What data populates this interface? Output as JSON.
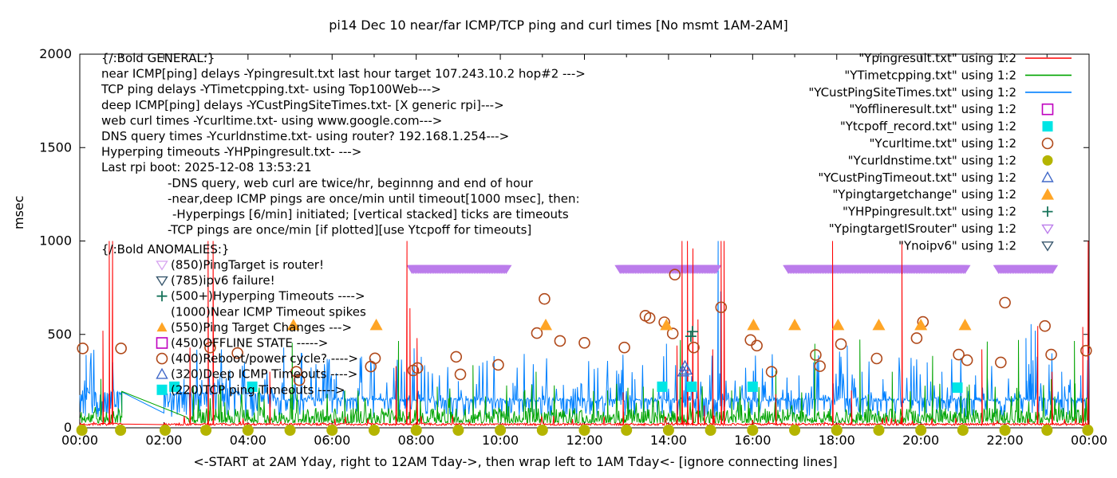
{
  "chart_data": {
    "type": "line+scatter",
    "title": "pi14 Dec 10  near/far ICMP/TCP ping and curl times [No msmt 1AM-2AM]",
    "xlabel": "<-START at 2AM Yday, right to 12AM Tday->, then wrap left to 1AM Tday<- [ignore connecting lines]",
    "ylabel": "msec",
    "ylim": [
      0,
      2000
    ],
    "xlim_hours": [
      0,
      24
    ],
    "grid": false,
    "legend_position": "inside top-right",
    "background": "#ffffff",
    "border_color": "#000000",
    "y_ticks": [
      0,
      500,
      1000,
      1500,
      2000
    ],
    "x_ticks": [
      "00:00",
      "02:00",
      "04:00",
      "06:00",
      "08:00",
      "10:00",
      "12:00",
      "14:00",
      "16:00",
      "18:00",
      "20:00",
      "22:00",
      "00:00"
    ],
    "series": [
      {
        "name": "\"Ypingresult.txt\" using 1:2",
        "color": "#ff0000",
        "kind": "line",
        "gen": "red",
        "seed": 7,
        "baseline": 18,
        "noise": 10,
        "gap": [
          1.0,
          2.0
        ],
        "gap_level": 20,
        "spikes": [
          [
            0.55,
            520
          ],
          [
            0.7,
            1000
          ],
          [
            0.78,
            1000
          ],
          [
            2.62,
            430
          ],
          [
            3.05,
            1000
          ],
          [
            3.17,
            1000
          ],
          [
            4.52,
            300
          ],
          [
            7.52,
            330
          ],
          [
            7.78,
            1000
          ],
          [
            7.85,
            640
          ],
          [
            8.02,
            480
          ],
          [
            12.92,
            190
          ],
          [
            14.2,
            440
          ],
          [
            14.32,
            1000
          ],
          [
            14.45,
            1000
          ],
          [
            14.58,
            960
          ],
          [
            14.7,
            580
          ],
          [
            14.85,
            120
          ],
          [
            15.05,
            420
          ],
          [
            15.25,
            1000
          ],
          [
            15.32,
            1000
          ],
          [
            16.55,
            180
          ],
          [
            17.9,
            1000
          ],
          [
            18.35,
            200
          ],
          [
            19.55,
            1000
          ],
          [
            21.45,
            420
          ],
          [
            22.78,
            545
          ],
          [
            23.12,
            300
          ],
          [
            23.85,
            540
          ],
          [
            23.98,
            1000
          ]
        ]
      },
      {
        "name": "\"YTimetcpping.txt\" using 1:2",
        "color": "#00a400",
        "kind": "line",
        "gen": "green",
        "seed": 11,
        "baseline": 45,
        "noise": 70,
        "gap": [
          1.0,
          2.55
        ],
        "gap_join": [
          [
            1.0,
            195
          ],
          [
            2.55,
            48
          ]
        ],
        "spikes": [
          [
            0.5,
            262
          ],
          [
            2.7,
            220
          ],
          [
            3.3,
            180
          ],
          [
            5.05,
            455
          ],
          [
            6.3,
            200
          ],
          [
            7.58,
            465
          ],
          [
            8.5,
            220
          ],
          [
            9.35,
            335
          ],
          [
            10.15,
            220
          ],
          [
            10.85,
            300
          ],
          [
            12.55,
            200
          ],
          [
            13.4,
            220
          ],
          [
            14.28,
            470
          ],
          [
            15.5,
            200
          ],
          [
            16.55,
            305
          ],
          [
            17.48,
            450
          ],
          [
            18.55,
            472
          ],
          [
            19.32,
            300
          ],
          [
            20.28,
            385
          ],
          [
            21.1,
            220
          ],
          [
            21.58,
            462
          ],
          [
            22.32,
            470
          ],
          [
            23.1,
            260
          ],
          [
            23.65,
            465
          ]
        ]
      },
      {
        "name": "\"YCustPingSiteTimes.txt\" using 1:2",
        "color": "#0080ff",
        "kind": "line",
        "gen": "blue",
        "seed": 23,
        "baseline": 150,
        "noise": 120,
        "gap": [
          1.0,
          2.0
        ],
        "gap_level": 192,
        "spikes": [
          [
            0.15,
            390
          ],
          [
            2.48,
            262
          ],
          [
            3.4,
            240
          ],
          [
            4.85,
            430
          ],
          [
            5.28,
            400
          ],
          [
            6.05,
            260
          ],
          [
            7.72,
            300
          ],
          [
            7.95,
            425
          ],
          [
            8.12,
            380
          ],
          [
            9.0,
            250
          ],
          [
            10.3,
            240
          ],
          [
            11.5,
            230
          ],
          [
            13.2,
            260
          ],
          [
            13.95,
            450
          ],
          [
            14.4,
            300
          ],
          [
            15.18,
            1000
          ],
          [
            15.24,
            730
          ],
          [
            16.02,
            300
          ],
          [
            17.1,
            280
          ],
          [
            17.45,
            350
          ],
          [
            18.25,
            440
          ],
          [
            18.6,
            300
          ],
          [
            19.1,
            260
          ],
          [
            20.15,
            350
          ],
          [
            20.5,
            300
          ],
          [
            21.3,
            280
          ],
          [
            22.5,
            480
          ],
          [
            22.62,
            555
          ],
          [
            22.72,
            520
          ],
          [
            23.05,
            300
          ],
          [
            23.35,
            300
          ],
          [
            23.8,
            280
          ]
        ]
      },
      {
        "name": "\"Yofflineresult.txt\" using 1:2",
        "color": "#bf00bf",
        "kind": "scatter",
        "marker": "square-open",
        "points": []
      },
      {
        "name": "\"Ytcpoff_record.txt\" using 1:2",
        "color": "#00e5e5",
        "kind": "scatter",
        "marker": "square",
        "points": [
          [
            2.25,
            220
          ],
          [
            4.1,
            220
          ],
          [
            13.85,
            220
          ],
          [
            14.55,
            220
          ],
          [
            16.0,
            220
          ],
          [
            20.87,
            215
          ]
        ]
      },
      {
        "name": "\"Ycurltime.txt\" using 1:2",
        "color": "#b0491a",
        "kind": "scatter",
        "marker": "circle-open",
        "points": [
          [
            0.07,
            425
          ],
          [
            0.98,
            425
          ],
          [
            3.1,
            430
          ],
          [
            3.75,
            400
          ],
          [
            5.15,
            300
          ],
          [
            5.22,
            255
          ],
          [
            6.92,
            328
          ],
          [
            7.02,
            372
          ],
          [
            7.93,
            307
          ],
          [
            8.03,
            320
          ],
          [
            8.95,
            380
          ],
          [
            9.05,
            286
          ],
          [
            9.95,
            337
          ],
          [
            10.87,
            507
          ],
          [
            11.05,
            690
          ],
          [
            11.42,
            465
          ],
          [
            12.0,
            455
          ],
          [
            12.95,
            430
          ],
          [
            13.45,
            600
          ],
          [
            13.55,
            588
          ],
          [
            13.9,
            565
          ],
          [
            14.1,
            505
          ],
          [
            14.15,
            820
          ],
          [
            14.6,
            430
          ],
          [
            15.25,
            645
          ],
          [
            15.95,
            470
          ],
          [
            16.1,
            440
          ],
          [
            16.45,
            300
          ],
          [
            17.5,
            390
          ],
          [
            17.6,
            330
          ],
          [
            18.1,
            448
          ],
          [
            18.95,
            371
          ],
          [
            19.9,
            480
          ],
          [
            20.05,
            567
          ],
          [
            20.9,
            392
          ],
          [
            21.1,
            362
          ],
          [
            21.9,
            350
          ],
          [
            22.0,
            670
          ],
          [
            22.95,
            545
          ],
          [
            23.1,
            392
          ],
          [
            23.93,
            413
          ]
        ]
      },
      {
        "name": "\"Ycurldnstime.txt\" using 1:2",
        "color": "#b4b400",
        "kind": "scatter",
        "marker": "circle",
        "points": [
          [
            0.05,
            0
          ],
          [
            0.97,
            0
          ],
          [
            2.03,
            0
          ],
          [
            3,
            0
          ],
          [
            4,
            0
          ],
          [
            5,
            0
          ],
          [
            6,
            0
          ],
          [
            7,
            0
          ],
          [
            8,
            0
          ],
          [
            9,
            0
          ],
          [
            10,
            0
          ],
          [
            11,
            0
          ],
          [
            12,
            0
          ],
          [
            13,
            0
          ],
          [
            14,
            0
          ],
          [
            15,
            0
          ],
          [
            16,
            0
          ],
          [
            17,
            0
          ],
          [
            18,
            0
          ],
          [
            19,
            0
          ],
          [
            20,
            0
          ],
          [
            21,
            0
          ],
          [
            22,
            0
          ],
          [
            23,
            0
          ],
          [
            23.97,
            0
          ]
        ]
      },
      {
        "name": "\"YCustPingTimeout.txt\" using 1:2",
        "color": "#4169c8",
        "kind": "scatter",
        "marker": "triangle-open",
        "points": [
          [
            14.35,
            300
          ],
          [
            14.39,
            330
          ],
          [
            14.43,
            310
          ]
        ]
      },
      {
        "name": "\"Ypingtargetchange\" using 1:2",
        "color": "#ffa526",
        "kind": "scatter",
        "marker": "triangle",
        "points": [
          [
            5.08,
            550
          ],
          [
            7.05,
            550
          ],
          [
            11.08,
            550
          ],
          [
            13.95,
            550
          ],
          [
            16.02,
            550
          ],
          [
            17.0,
            550
          ],
          [
            18.03,
            550
          ],
          [
            19.0,
            550
          ],
          [
            20.0,
            550
          ],
          [
            21.05,
            550
          ]
        ]
      },
      {
        "name": "\"YHPpingresult.txt\" using 1:2",
        "color": "#17735a",
        "kind": "scatter",
        "marker": "plus",
        "points": [
          [
            14.53,
            490
          ],
          [
            14.57,
            515
          ]
        ]
      },
      {
        "name": "\"YpingtargetISrouter\" using 1:2",
        "color": "#bb7ceb",
        "kind": "band",
        "marker": "triangle-down-open",
        "band_y": 850,
        "intervals": [
          [
            7.9,
            10.15
          ],
          [
            12.85,
            15.15
          ],
          [
            16.85,
            21.05
          ],
          [
            21.85,
            23.15
          ]
        ]
      },
      {
        "name": "\"Ynoipv6\" using 1:2",
        "color": "#39586e",
        "kind": "scatter",
        "marker": "triangle-down-open",
        "points": []
      }
    ],
    "annotations": {
      "general": [
        {
          "x": 127,
          "text": "{/:Bold GENERAL:}"
        },
        {
          "x": 127,
          "text": "near ICMP[ping] delays -Ypingresult.txt last hour target 107.243.10.2 hop#2 --->"
        },
        {
          "x": 127,
          "text": "TCP ping delays -YTimetcpping.txt- using Top100Web--->"
        },
        {
          "x": 127,
          "text": "deep ICMP[ping] delays -YCustPingSiteTimes.txt- [X generic rpi]--->"
        },
        {
          "x": 127,
          "text": "web curl times -Ycurltime.txt- using www.google.com--->"
        },
        {
          "x": 127,
          "text": "DNS query times -Ycurldnstime.txt- using router? 192.168.1.254--->"
        },
        {
          "x": 127,
          "text": "Hyperping timeouts -YHPpingresult.txt- --->"
        },
        {
          "x": 127,
          "text": "Last rpi boot: 2025-12-08 13:53:21"
        },
        {
          "x": 210,
          "text": "-DNS query, web curl are twice/hr, beginnng and end of hour"
        },
        {
          "x": 210,
          "text": "-near,deep ICMP pings are once/min until timeout[1000 msec], then:"
        },
        {
          "x": 216,
          "text": "-Hyperpings [6/min] initiated; [vertical stacked] ticks are timeouts"
        },
        {
          "x": 210,
          "text": "-TCP pings are once/min [if plotted][use Ytcpoff for timeouts]"
        }
      ],
      "anomalies": {
        "header": "{/:Bold ANOMALIES:}",
        "rows": [
          {
            "marker": "triangle-down-open",
            "color": "#d8a7f0",
            "label": "(850)PingTarget is router!"
          },
          {
            "marker": "triangle-down-open",
            "color": "#39586e",
            "label": "(785)ipv6 failure!"
          },
          {
            "marker": "plus",
            "color": "#17735a",
            "label": "(500+)Hyperping Timeouts ---->"
          },
          {
            "marker": "none",
            "color": "#000000",
            "label": "(1000)Near ICMP Timeout spikes"
          },
          {
            "marker": "triangle",
            "color": "#ffa526",
            "label": "(550)Ping Target Changes --->"
          },
          {
            "marker": "square-open",
            "color": "#bf00bf",
            "label": "(450)OFFLINE STATE ----->"
          },
          {
            "marker": "circle-open",
            "color": "#b0491a",
            "label": "(400)Reboot/power cycle? ---->"
          },
          {
            "marker": "triangle-open",
            "color": "#4169c8",
            "label": "(320)Deep ICMP Timeouts ---->"
          },
          {
            "marker": "square",
            "color": "#00e5e5",
            "label": "(220)TCP ping Timeouts ---->"
          }
        ]
      }
    }
  }
}
